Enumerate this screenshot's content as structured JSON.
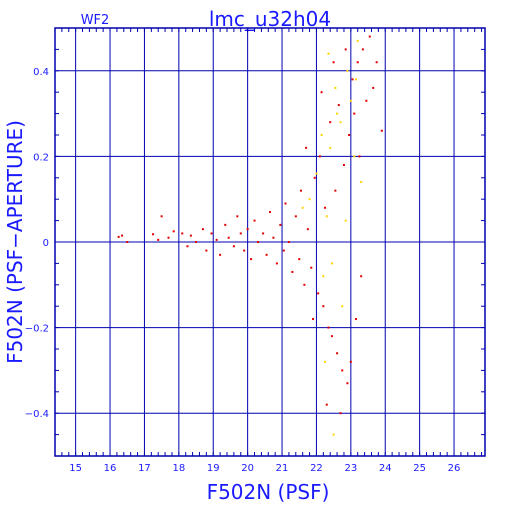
{
  "chart_data": {
    "type": "scatter",
    "title": "lmc_u32h04",
    "subtitle": "WF2",
    "xlabel": "F502N (PSF)",
    "ylabel": "F502N (PSF−APERTURE)",
    "xlim": [
      14.4,
      26.9
    ],
    "ylim": [
      -0.5,
      0.5
    ],
    "xticks": [
      15,
      16,
      17,
      18,
      19,
      20,
      21,
      22,
      23,
      24,
      25,
      26
    ],
    "yticks": [
      -0.4,
      -0.2,
      0,
      0.2,
      0.4
    ],
    "ytick_labels": [
      "−0.4",
      "−0.2",
      "0",
      "0.2",
      "0.4"
    ],
    "grid": true,
    "colors": {
      "frame": "#0000b0",
      "text": "#1a1aff",
      "red": "#e00000",
      "yellow": "#ffd400"
    },
    "series": [
      {
        "color": "red",
        "points": [
          [
            16.25,
            0.012
          ],
          [
            16.35,
            0.015
          ],
          [
            16.5,
            0.0
          ],
          [
            17.25,
            0.018
          ],
          [
            17.4,
            0.005
          ],
          [
            17.5,
            0.06
          ],
          [
            17.7,
            0.01
          ],
          [
            17.85,
            0.025
          ],
          [
            18.1,
            0.02
          ],
          [
            18.25,
            -0.01
          ],
          [
            18.35,
            0.015
          ],
          [
            18.5,
            0.0
          ],
          [
            18.7,
            0.03
          ],
          [
            18.8,
            -0.02
          ],
          [
            18.95,
            0.02
          ],
          [
            19.1,
            0.005
          ],
          [
            19.2,
            -0.03
          ],
          [
            19.35,
            0.04
          ],
          [
            19.45,
            0.01
          ],
          [
            19.6,
            -0.01
          ],
          [
            19.7,
            0.06
          ],
          [
            19.8,
            0.02
          ],
          [
            19.9,
            -0.02
          ],
          [
            20.0,
            0.03
          ],
          [
            20.1,
            -0.04
          ],
          [
            20.2,
            0.05
          ],
          [
            20.3,
            0.0
          ],
          [
            20.45,
            0.02
          ],
          [
            20.55,
            -0.03
          ],
          [
            20.65,
            0.07
          ],
          [
            20.75,
            0.01
          ],
          [
            20.85,
            -0.05
          ],
          [
            20.95,
            0.04
          ],
          [
            21.05,
            -0.02
          ],
          [
            21.1,
            0.09
          ],
          [
            21.2,
            0.0
          ],
          [
            21.3,
            -0.07
          ],
          [
            21.4,
            0.06
          ],
          [
            21.5,
            -0.04
          ],
          [
            21.55,
            0.12
          ],
          [
            21.65,
            -0.1
          ],
          [
            21.75,
            0.03
          ],
          [
            21.85,
            -0.06
          ],
          [
            21.95,
            0.15
          ],
          [
            22.05,
            -0.12
          ],
          [
            22.1,
            0.2
          ],
          [
            22.2,
            -0.15
          ],
          [
            22.25,
            0.08
          ],
          [
            22.35,
            -0.2
          ],
          [
            22.4,
            0.28
          ],
          [
            22.45,
            -0.22
          ],
          [
            22.55,
            0.12
          ],
          [
            22.6,
            -0.26
          ],
          [
            22.65,
            0.32
          ],
          [
            22.75,
            -0.3
          ],
          [
            22.8,
            0.18
          ],
          [
            22.9,
            -0.33
          ],
          [
            22.95,
            0.25
          ],
          [
            23.05,
            0.38
          ],
          [
            23.1,
            0.3
          ],
          [
            23.2,
            0.42
          ],
          [
            23.25,
            0.2
          ],
          [
            23.35,
            0.45
          ],
          [
            23.45,
            0.33
          ],
          [
            23.55,
            0.48
          ],
          [
            23.65,
            0.36
          ],
          [
            23.75,
            0.42
          ],
          [
            23.9,
            0.26
          ],
          [
            21.7,
            0.22
          ],
          [
            21.9,
            -0.18
          ],
          [
            22.15,
            0.35
          ],
          [
            22.3,
            -0.38
          ],
          [
            22.5,
            0.42
          ],
          [
            22.7,
            -0.4
          ],
          [
            22.85,
            0.45
          ],
          [
            23.0,
            -0.28
          ],
          [
            23.15,
            -0.18
          ],
          [
            23.3,
            -0.08
          ]
        ]
      },
      {
        "color": "yellow",
        "points": [
          [
            21.8,
            0.1
          ],
          [
            22.0,
            0.16
          ],
          [
            22.15,
            0.25
          ],
          [
            22.25,
            -0.28
          ],
          [
            22.35,
            0.44
          ],
          [
            22.4,
            0.22
          ],
          [
            22.45,
            -0.05
          ],
          [
            22.5,
            -0.45
          ],
          [
            22.55,
            0.36
          ],
          [
            22.6,
            0.3
          ],
          [
            22.7,
            0.28
          ],
          [
            22.75,
            -0.15
          ],
          [
            22.85,
            0.05
          ],
          [
            22.9,
            0.4
          ],
          [
            23.0,
            0.33
          ],
          [
            23.1,
            0.2
          ],
          [
            23.15,
            0.38
          ],
          [
            23.2,
            0.47
          ],
          [
            23.3,
            0.14
          ],
          [
            21.6,
            0.08
          ],
          [
            22.2,
            -0.08
          ],
          [
            22.3,
            0.06
          ]
        ]
      }
    ]
  }
}
